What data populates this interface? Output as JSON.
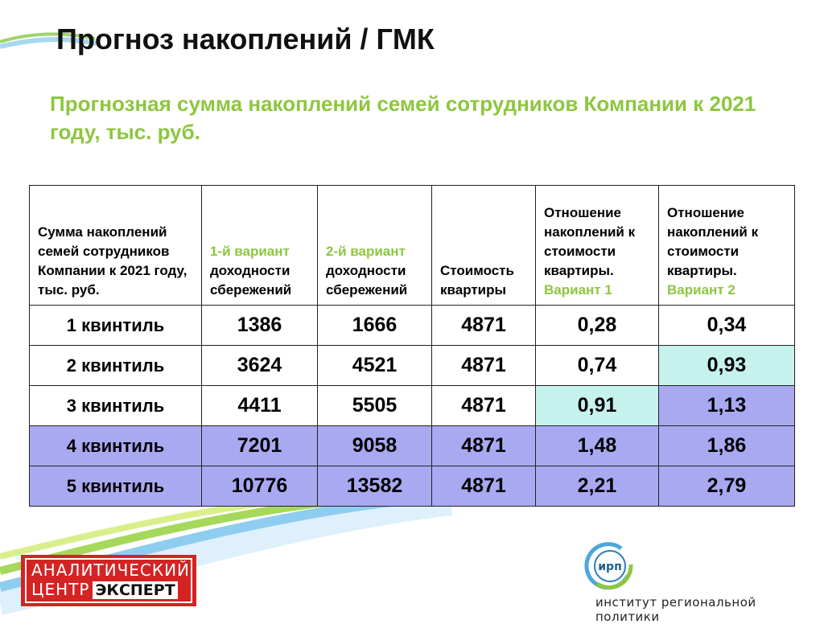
{
  "slide": {
    "title": "Прогноз накоплений / ГМК",
    "subtitle": "Прогнозная сумма накоплений семей сотрудников Компании к 2021 году, тыс. руб."
  },
  "colors": {
    "accent_green": "#8dc63f",
    "highlight_cyan": "#c6f2ee",
    "highlight_blue": "#a9a9f2",
    "logo_red": "#d42323"
  },
  "table": {
    "header": {
      "col0": "Сумма накоплений семей сотрудников Компании к  2021 году, тыс. руб.",
      "col1": "1-й вариант",
      "col1b": "доходности сбережений",
      "col2": "2-й вариант",
      "col2b": "доходности сбережений",
      "col3": "Стоимость квартиры",
      "col4": "Отношение накоплений к стоимости квартиры.",
      "col4b": "Вариант 1",
      "col5": "Отношение накоплений к стоимости квартиры.",
      "col5b": "Вариант 2"
    },
    "rows": [
      {
        "label": "1 квинтиль",
        "v1": "1386",
        "v2": "1666",
        "price": "4871",
        "r1": "0,28",
        "r2": "0,34"
      },
      {
        "label": "2 квинтиль",
        "v1": "3624",
        "v2": "4521",
        "price": "4871",
        "r1": "0,74",
        "r2": "0,93"
      },
      {
        "label": "3 квинтиль",
        "v1": "4411",
        "v2": "5505",
        "price": "4871",
        "r1": "0,91",
        "r2": "1,13"
      },
      {
        "label": "4 квинтиль",
        "v1": "7201",
        "v2": "9058",
        "price": "4871",
        "r1": "1,48",
        "r2": "1,86"
      },
      {
        "label": "5 квинтиль",
        "v1": "10776",
        "v2": "13582",
        "price": "4871",
        "r1": "2,21",
        "r2": "2,79"
      }
    ]
  },
  "logos": {
    "left_line1": "АНАЛИТИЧЕСКИЙ",
    "left_line2a": "ЦЕНТР",
    "left_line2b": "ЭКСПЕРТ",
    "irp_mark": "ирп",
    "irp_caption": "институт региональной политики"
  }
}
